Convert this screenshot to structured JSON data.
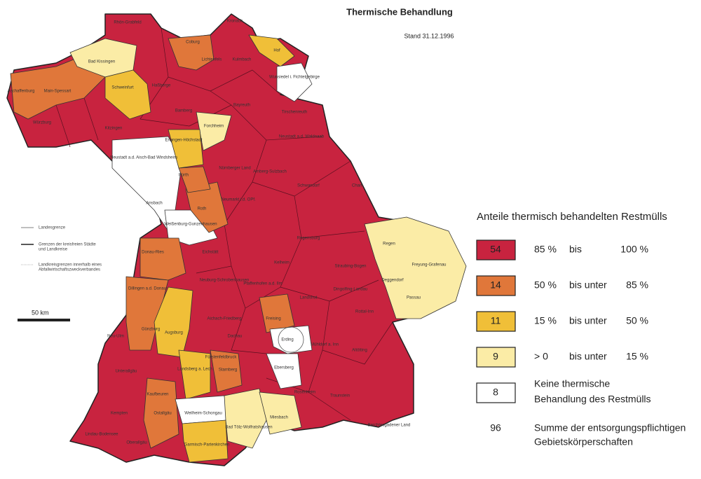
{
  "header": {
    "title": "Thermische Behandlung",
    "date": "Stand 31.12.1996"
  },
  "legend": {
    "title": "Anteile thermisch behandelten Restmülls",
    "rows": [
      {
        "count": 54,
        "color": "#c8233f",
        "from": "85 %",
        "conj": "bis",
        "to": "100 %"
      },
      {
        "count": 14,
        "color": "#e0773a",
        "from": "50 %",
        "conj": "bis unter",
        "to": "85 %"
      },
      {
        "count": 11,
        "color": "#f0bf38",
        "from": "15 %",
        "conj": "bis unter",
        "to": "50 %"
      },
      {
        "count": 9,
        "color": "#fbeca6",
        "from": "> 0",
        "conj": "bis unter",
        "to": "15 %"
      }
    ],
    "none": {
      "count": 8,
      "color": "#ffffff",
      "lines": [
        "Keine thermische",
        "Behandlung des Restmülls"
      ]
    },
    "total": {
      "count": 96,
      "lines": [
        "Summe der entsorgungspflichtigen",
        "Gebietskörperschaften"
      ]
    }
  },
  "side_legend": {
    "items": [
      [
        "Landesgrenze"
      ],
      [
        "Grenzen der kreisfreien Städte",
        "und Landkreise"
      ],
      [
        "Landkreisgrenzen innerhalb eines",
        "Abfallwirtschaftszweckverbandes"
      ]
    ],
    "scale": "50 km"
  },
  "regions": [
    "Rhön-Grabfeld",
    "Kronach",
    "Hof",
    "Bad Kissingen",
    "Coburg",
    "Lichtenfels",
    "Kulmbach",
    "Wunsiedel i. Fichtelgebirge",
    "Aschaffenburg",
    "Main-Spessart",
    "Schweinfurt",
    "Haßberge",
    "Bamberg",
    "Bayreuth",
    "Tirschenreuth",
    "Würzburg",
    "Kitzingen",
    "Erlangen-Höchstadt",
    "Forchheim",
    "Neustadt a.d. Waldnaab",
    "Neustadt a.d. Aisch-Bad Windsheim",
    "Fürth",
    "Nürnberger Land",
    "Amberg-Sulzbach",
    "Schwandorf",
    "Cham",
    "Ansbach",
    "Roth",
    "Neumarkt i.d. OPf.",
    "Weißenburg-Gunzenhausen",
    "Regensburg",
    "Regen",
    "Donau-Ries",
    "Eichstätt",
    "Kelheim",
    "Straubing-Bogen",
    "Freyung-Grafenau",
    "Deggendorf",
    "Dillingen a.d. Donau",
    "Neuburg-Schrobenhausen",
    "Pfaffenhofen a.d. Ilm",
    "Landshut",
    "Dingolfing-Landau",
    "Passau",
    "Günzburg",
    "Aichach-Friedberg",
    "Freising",
    "Rottal-Inn",
    "Augsburg",
    "Dachau",
    "Erding",
    "Neu-Ulm",
    "Fürstenfeldbruck",
    "Mühldorf a. Inn",
    "Altötting",
    "Unterallgäu",
    "Landsberg a. Lech",
    "Starnberg",
    "Ebersberg",
    "Kaufbeuren",
    "Ostallgäu",
    "Weilheim-Schongau",
    "Rosenheim",
    "Traunstein",
    "Kempten",
    "Lindau-Bodensee",
    "Oberallgäu",
    "Garmisch-Partenkirchen",
    "Bad Tölz-Wolfratshausen",
    "Miesbach",
    "Berchtesgadener Land"
  ]
}
